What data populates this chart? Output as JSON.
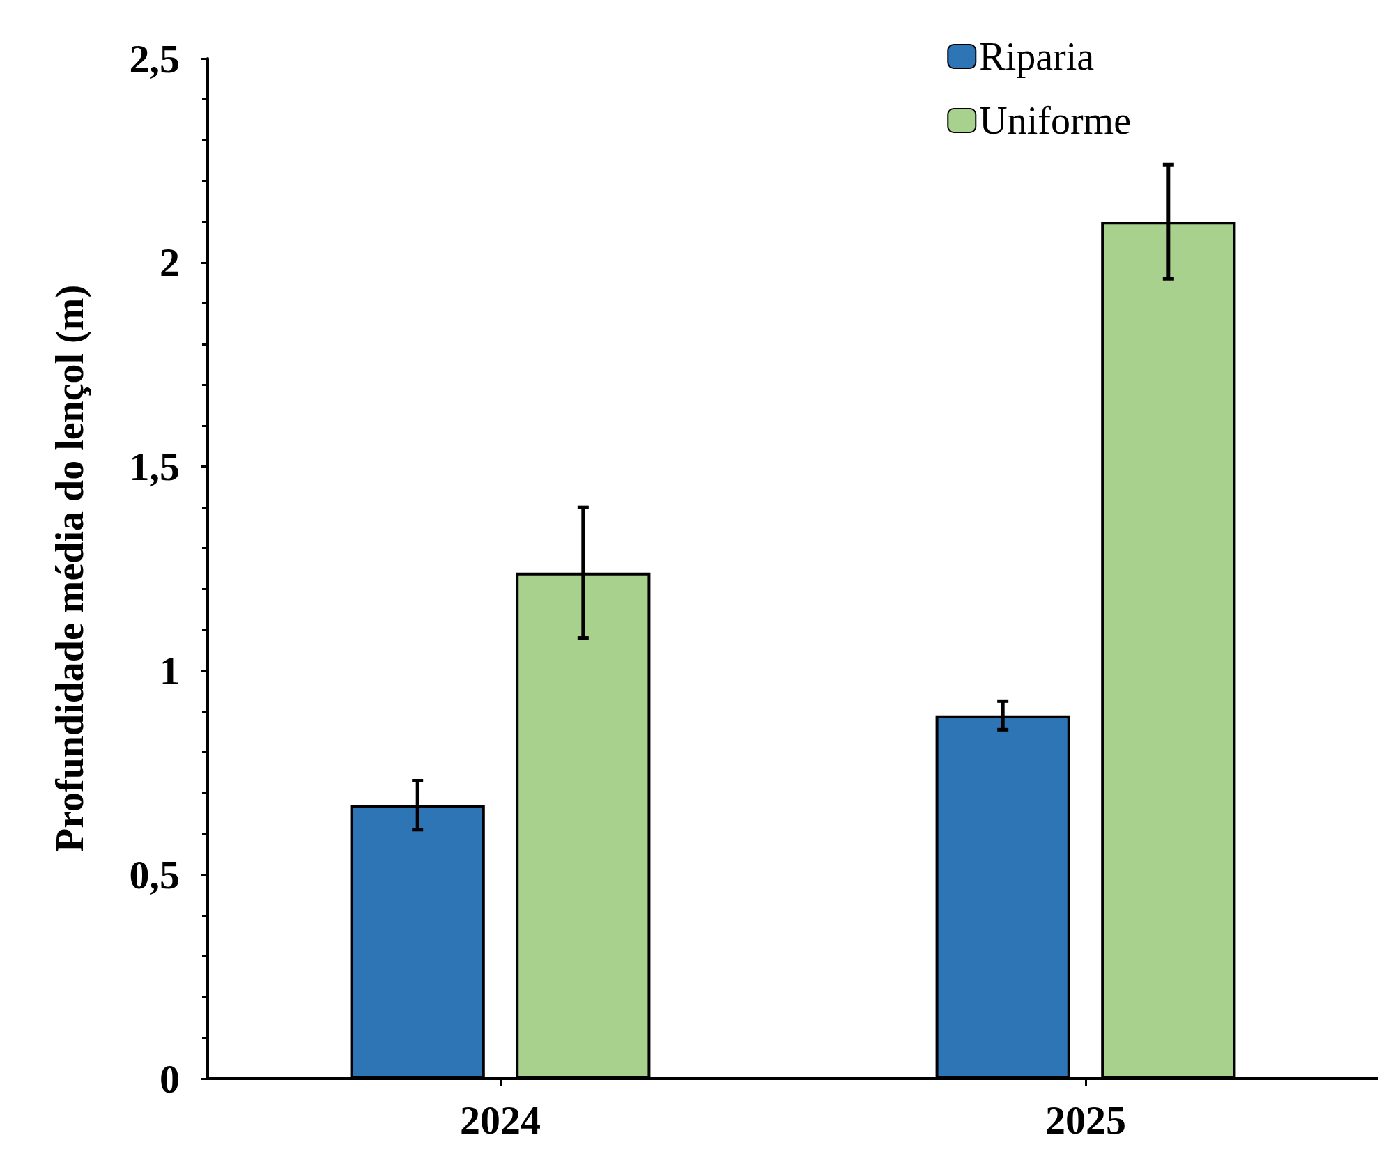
{
  "chart_data": {
    "type": "bar",
    "ylabel": "Profundidade média do lençol (m)",
    "categories": [
      "2024",
      "2025"
    ],
    "series": [
      {
        "name": "Riparia",
        "color": "#2e75b6",
        "values": [
          0.67,
          0.89
        ],
        "errors": [
          0.06,
          0.035
        ]
      },
      {
        "name": "Uniforme",
        "color": "#a9d18e",
        "values": [
          1.24,
          2.1
        ],
        "errors": [
          0.16,
          0.14
        ]
      }
    ],
    "ylim": [
      0,
      2.5
    ],
    "yticks": [
      0,
      {
        "value": 0.5,
        "label": "0,5"
      },
      1,
      {
        "value": 1.5,
        "label": "1,5"
      },
      2,
      {
        "value": 2.5,
        "label": "2,5"
      }
    ],
    "grid": false,
    "legend": "top right"
  }
}
